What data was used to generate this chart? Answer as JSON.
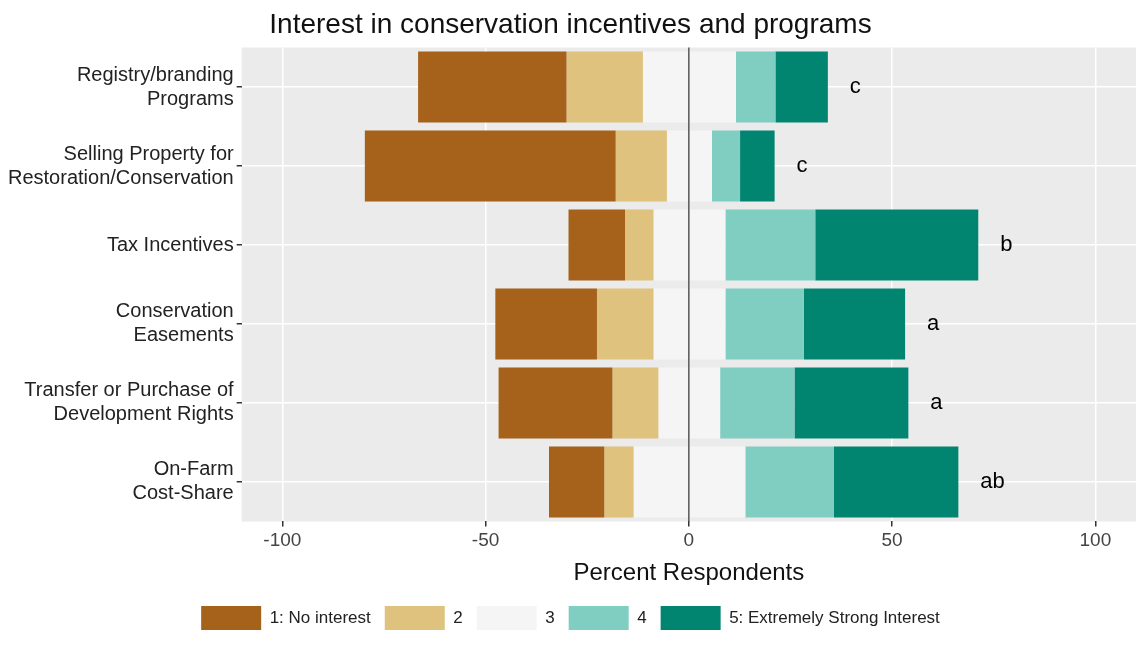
{
  "chart_data": {
    "type": "bar",
    "orientation": "horizontal",
    "title": "Interest in conservation incentives and programs",
    "xlabel": "Percent Respondents",
    "categories": [
      "Registry/branding\nPrograms",
      "Selling Property for\nRestoration/Conservation",
      "Tax Incentives",
      "Conservation\nEasements",
      "Transfer or Purchase of\nDevelopment Rights",
      "On-Farm\nCost-Share"
    ],
    "series": [
      {
        "name": "1: No interest",
        "color": "#a6611a",
        "base": [
          -66.6,
          -79.7,
          -29.6,
          -47.6,
          -46.8,
          -34.4
        ],
        "values": [
          36.5,
          61.7,
          13.9,
          25,
          28,
          13.6
        ]
      },
      {
        "name": "2",
        "color": "#dfc27d",
        "base": [
          -30.1,
          -18,
          -15.7,
          -22.6,
          -18.8,
          -20.8
        ],
        "values": [
          18.8,
          12.6,
          7,
          13.9,
          11.3,
          7.2
        ]
      },
      {
        "name": "3",
        "color": "#f5f5f5",
        "base": [
          -11.3,
          -5.4,
          -8.7,
          -8.7,
          -7.5,
          -13.6
        ],
        "values": [
          22.9,
          11.1,
          17.7,
          17.7,
          15.2,
          27.5
        ]
      },
      {
        "name": "4",
        "color": "#80cdc1",
        "base": [
          11.6,
          5.7,
          9,
          9,
          7.7,
          13.9
        ],
        "values": [
          9.7,
          6.9,
          22.1,
          19.3,
          18.3,
          21.8
        ]
      },
      {
        "name": "5: Extremely Strong Interest",
        "color": "#018571",
        "base": [
          21.3,
          12.6,
          31.1,
          28.3,
          26,
          35.7
        ],
        "values": [
          12.9,
          8.5,
          40.1,
          24.9,
          28,
          30.6
        ]
      }
    ],
    "xlim": [
      -110,
      110
    ],
    "xticks": [
      -100,
      -50,
      0,
      50,
      100
    ],
    "ref_lines": [
      {
        "axis": "x",
        "value": 0,
        "color": "#555555"
      }
    ],
    "annotations": [
      {
        "text": "c",
        "x": 34.2,
        "y": "Registry/branding\nPrograms"
      },
      {
        "text": "c",
        "x": 21.1,
        "y": "Selling Property for\nRestoration/Conservation"
      },
      {
        "text": "b",
        "x": 71.2,
        "y": "Tax Incentives"
      },
      {
        "text": "a",
        "x": 53.2,
        "y": "Conservation\nEasements"
      },
      {
        "text": "a",
        "x": 54,
        "y": "Transfer or Purchase of\nDevelopment Rights"
      },
      {
        "text": "ab",
        "x": 66.3,
        "y": "On-Farm\nCost-Share"
      }
    ],
    "grid": true,
    "legend": "bottom"
  }
}
